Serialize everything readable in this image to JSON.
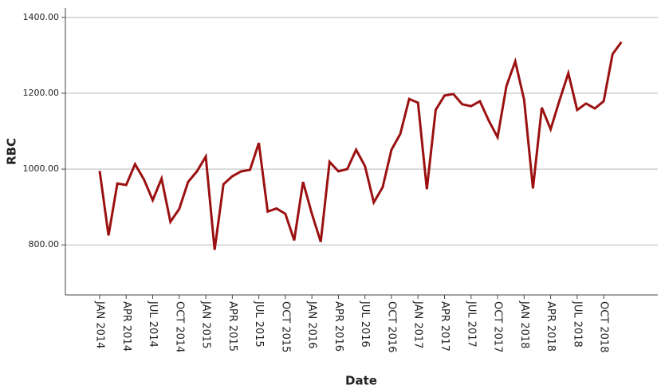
{
  "chart_data": {
    "type": "line",
    "x_label": "Date",
    "y_label": "RBC",
    "categories": [
      "JAN 2014",
      null,
      null,
      "APR 2014",
      null,
      null,
      "JUL 2014",
      null,
      null,
      "OCT 2014",
      null,
      null,
      "JAN 2015",
      null,
      null,
      "APR 2015",
      null,
      null,
      "JUL 2015",
      null,
      null,
      "OCT 2015",
      null,
      null,
      "JAN 2016",
      null,
      null,
      "APR 2016",
      null,
      null,
      "JUL 2016",
      null,
      null,
      "OCT 2016",
      null,
      null,
      "JAN 2017",
      null,
      null,
      "APR 2017",
      null,
      null,
      "JUL 2017",
      null,
      null,
      "OCT 2017",
      null,
      null,
      "JAN 2018",
      null,
      null,
      "APR 2018",
      null,
      null,
      "JUL 2018",
      null,
      null,
      "OCT 2018",
      null,
      null
    ],
    "series": [
      {
        "name": "RBC",
        "color": "#9b1111",
        "values": [
          995,
          825,
          962,
          958,
          1013,
          973,
          918,
          975,
          861,
          895,
          966,
          994,
          1033,
          787,
          960,
          981,
          994,
          998,
          1069,
          888,
          896,
          882,
          812,
          966,
          882,
          808,
          1019,
          994,
          1000,
          1051,
          1008,
          912,
          952,
          1051,
          1093,
          1185,
          1175,
          947,
          1156,
          1194,
          1198,
          1171,
          1166,
          1179,
          1128,
          1084,
          1219,
          1284,
          1183,
          949,
          1162,
          1105,
          1181,
          1253,
          1156,
          1173,
          1160,
          1179,
          1303,
          1335
        ]
      }
    ],
    "ylim": [
      668,
      1425
    ],
    "yticks": [
      {
        "value": 800,
        "label": "800.00"
      },
      {
        "value": 1000,
        "label": "1000.00"
      },
      {
        "value": 1200,
        "label": "1200.00"
      },
      {
        "value": 1400,
        "label": "1400.00"
      }
    ],
    "grid": true
  }
}
